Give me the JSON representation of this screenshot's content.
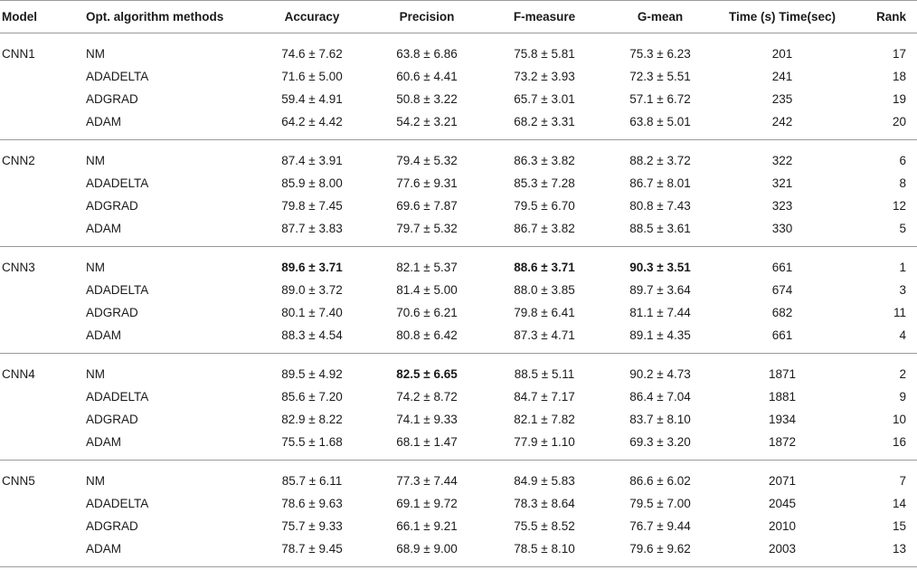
{
  "headers": {
    "model": "Model",
    "method": "Opt. algorithm methods",
    "accuracy": "Accuracy",
    "precision": "Precision",
    "fmeasure": "F-measure",
    "gmean": "G-mean",
    "time": "Time (s) Time(sec)",
    "rank": "Rank"
  },
  "groups": [
    {
      "model": "CNN1",
      "rows": [
        {
          "method": "NM",
          "acc": "74.6 ± 7.62",
          "prec": "63.8 ± 6.86",
          "f": "75.8 ± 5.81",
          "g": "75.3 ± 6.23",
          "time": "201",
          "rank": "17"
        },
        {
          "method": "ADADELTA",
          "acc": "71.6 ± 5.00",
          "prec": "60.6 ± 4.41",
          "f": "73.2 ± 3.93",
          "g": "72.3 ± 5.51",
          "time": "241",
          "rank": "18"
        },
        {
          "method": "ADGRAD",
          "acc": "59.4 ± 4.91",
          "prec": "50.8 ± 3.22",
          "f": "65.7 ± 3.01",
          "g": "57.1 ± 6.72",
          "time": "235",
          "rank": "19"
        },
        {
          "method": "ADAM",
          "acc": "64.2 ± 4.42",
          "prec": "54.2 ± 3.21",
          "f": "68.2 ± 3.31",
          "g": "63.8 ± 5.01",
          "time": "242",
          "rank": "20"
        }
      ]
    },
    {
      "model": "CNN2",
      "rows": [
        {
          "method": "NM",
          "acc": "87.4 ± 3.91",
          "prec": "79.4 ± 5.32",
          "f": "86.3 ± 3.82",
          "g": "88.2 ± 3.72",
          "time": "322",
          "rank": "6"
        },
        {
          "method": "ADADELTA",
          "acc": "85.9 ± 8.00",
          "prec": "77.6 ± 9.31",
          "f": "85.3 ± 7.28",
          "g": "86.7 ± 8.01",
          "time": "321",
          "rank": "8"
        },
        {
          "method": "ADGRAD",
          "acc": "79.8 ± 7.45",
          "prec": "69.6 ± 7.87",
          "f": "79.5 ± 6.70",
          "g": "80.8 ± 7.43",
          "time": "323",
          "rank": "12"
        },
        {
          "method": "ADAM",
          "acc": "87.7 ± 3.83",
          "prec": "79.7 ± 5.32",
          "f": "86.7 ± 3.82",
          "g": "88.5 ± 3.61",
          "time": "330",
          "rank": "5"
        }
      ]
    },
    {
      "model": "CNN3",
      "rows": [
        {
          "method": "NM",
          "acc": "89.6 ± 3.71",
          "prec": "82.1 ± 5.37",
          "f": "88.6 ± 3.71",
          "g": "90.3 ± 3.51",
          "time": "661",
          "rank": "1",
          "bold": [
            "acc",
            "f",
            "g"
          ]
        },
        {
          "method": "ADADELTA",
          "acc": "89.0 ± 3.72",
          "prec": "81.4 ± 5.00",
          "f": "88.0 ± 3.85",
          "g": "89.7 ± 3.64",
          "time": "674",
          "rank": "3"
        },
        {
          "method": "ADGRAD",
          "acc": "80.1 ± 7.40",
          "prec": "70.6 ± 6.21",
          "f": "79.8 ± 6.41",
          "g": "81.1 ± 7.44",
          "time": "682",
          "rank": "11"
        },
        {
          "method": "ADAM",
          "acc": "88.3 ± 4.54",
          "prec": "80.8 ± 6.42",
          "f": "87.3 ± 4.71",
          "g": "89.1 ± 4.35",
          "time": "661",
          "rank": "4"
        }
      ]
    },
    {
      "model": "CNN4",
      "rows": [
        {
          "method": "NM",
          "acc": "89.5 ± 4.92",
          "prec": "82.5 ± 6.65",
          "f": "88.5 ± 5.11",
          "g": "90.2 ± 4.73",
          "time": "1871",
          "rank": "2",
          "bold": [
            "prec"
          ]
        },
        {
          "method": "ADADELTA",
          "acc": "85.6 ± 7.20",
          "prec": "74.2 ± 8.72",
          "f": "84.7 ± 7.17",
          "g": "86.4 ± 7.04",
          "time": "1881",
          "rank": "9"
        },
        {
          "method": "ADGRAD",
          "acc": "82.9 ± 8.22",
          "prec": "74.1 ± 9.33",
          "f": "82.1 ± 7.82",
          "g": "83.7 ± 8.10",
          "time": "1934",
          "rank": "10"
        },
        {
          "method": "ADAM",
          "acc": "75.5 ± 1.68",
          "prec": "68.1 ± 1.47",
          "f": "77.9 ± 1.10",
          "g": "69.3 ± 3.20",
          "time": "1872",
          "rank": "16"
        }
      ]
    },
    {
      "model": "CNN5",
      "rows": [
        {
          "method": "NM",
          "acc": "85.7 ± 6.11",
          "prec": "77.3 ± 7.44",
          "f": "84.9 ± 5.83",
          "g": "86.6 ± 6.02",
          "time": "2071",
          "rank": "7"
        },
        {
          "method": "ADADELTA",
          "acc": "78.6 ± 9.63",
          "prec": "69.1 ± 9.72",
          "f": "78.3 ± 8.64",
          "g": "79.5 ± 7.00",
          "time": "2045",
          "rank": "14"
        },
        {
          "method": "ADGRAD",
          "acc": "75.7 ± 9.33",
          "prec": "66.1 ± 9.21",
          "f": "75.5 ± 8.52",
          "g": "76.7 ± 9.44",
          "time": "2010",
          "rank": "15"
        },
        {
          "method": "ADAM",
          "acc": "78.7 ± 9.45",
          "prec": "68.9 ± 9.00",
          "f": "78.5 ± 8.10",
          "g": "79.6 ± 9.62",
          "time": "2003",
          "rank": "13"
        }
      ]
    }
  ]
}
